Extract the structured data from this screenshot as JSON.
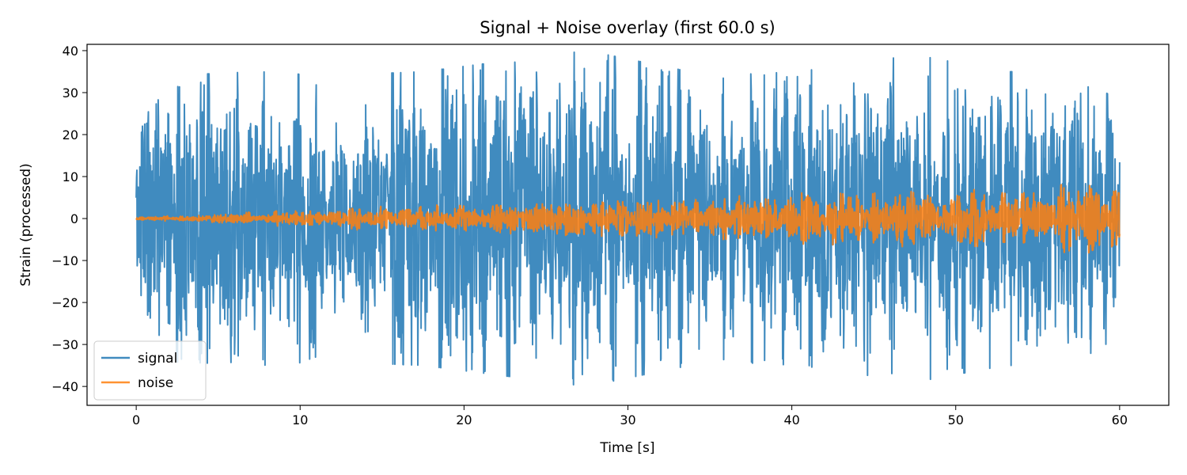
{
  "chart_data": {
    "type": "line",
    "title": "Signal + Noise overlay (first 60.0 s)",
    "xlabel": "Time [s]",
    "ylabel": "Strain (processed)",
    "xlim": [
      -3,
      63
    ],
    "ylim": [
      -44.5,
      41.5
    ],
    "xticks": [
      0,
      10,
      20,
      30,
      40,
      50,
      60
    ],
    "yticks": [
      -40,
      -30,
      -20,
      -10,
      0,
      10,
      20,
      30,
      40
    ],
    "xtick_labels": [
      "0",
      "10",
      "20",
      "30",
      "40",
      "50",
      "60"
    ],
    "ytick_labels": [
      "−40",
      "−30",
      "−20",
      "−10",
      "0",
      "10",
      "20",
      "30",
      "40"
    ],
    "grid": false,
    "legend_position": "lower-left",
    "series": [
      {
        "name": "signal",
        "color": "#1f77b4",
        "alpha": 0.85,
        "envelope": [
          {
            "t": 0,
            "amp": 29
          },
          {
            "t": 1.5,
            "amp": 34
          },
          {
            "t": 7.5,
            "amp": 35
          },
          {
            "t": 11.5,
            "amp": 34
          },
          {
            "t": 17.5,
            "amp": 35
          },
          {
            "t": 21.5,
            "amp": 37
          },
          {
            "t": 27.5,
            "amp": 40
          },
          {
            "t": 35,
            "amp": 34
          },
          {
            "t": 40.5,
            "amp": 35
          },
          {
            "t": 47.5,
            "amp": 39
          },
          {
            "t": 53,
            "amp": 35
          },
          {
            "t": 57,
            "amp": 35
          },
          {
            "t": 60,
            "amp": 28
          }
        ]
      },
      {
        "name": "noise",
        "color": "#ff7f0e",
        "alpha": 0.85,
        "envelope": [
          {
            "t": 0,
            "amp": 0.3
          },
          {
            "t": 5,
            "amp": 1.2
          },
          {
            "t": 10,
            "amp": 2
          },
          {
            "t": 15,
            "amp": 3
          },
          {
            "t": 20,
            "amp": 3.5
          },
          {
            "t": 25,
            "amp": 4
          },
          {
            "t": 30,
            "amp": 4.5
          },
          {
            "t": 35,
            "amp": 5
          },
          {
            "t": 40,
            "amp": 6
          },
          {
            "t": 45,
            "amp": 6.5
          },
          {
            "t": 50,
            "amp": 7
          },
          {
            "t": 55,
            "amp": 7.5
          },
          {
            "t": 59,
            "amp": 9
          },
          {
            "t": 60,
            "amp": 6
          }
        ]
      }
    ]
  }
}
